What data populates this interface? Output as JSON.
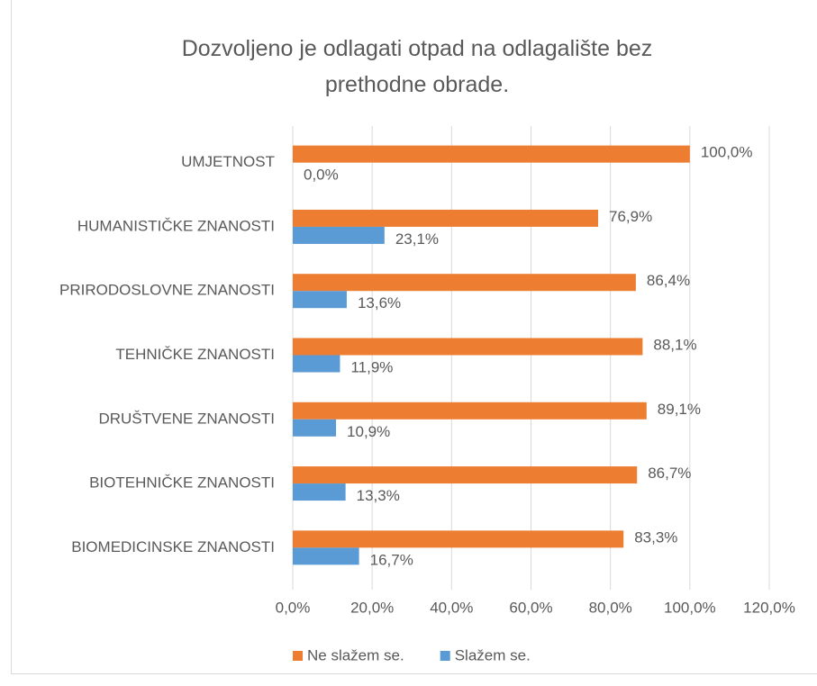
{
  "chart_data": {
    "type": "hbar",
    "title": "Dozvoljeno je odlagati otpad na odlagalište bez prethodne obrade.",
    "categories": [
      "UMJETNOST",
      "HUMANISTIČKE ZNANOSTI",
      "PRIRODOSLOVNE ZNANOSTI",
      "TEHNIČKE ZNANOSTI",
      "DRUŠTVENE ZNANOSTI",
      "BIOTEHNIČKE ZNANOSTI",
      "BIOMEDICINSKE ZNANOSTI"
    ],
    "series": [
      {
        "name": "Ne slažem se.",
        "color": "#ed7d31",
        "values": [
          100,
          76.9,
          86.4,
          88.1,
          89.1,
          86.7,
          83.3
        ],
        "value_labels": [
          "100,0%",
          "76,9%",
          "86,4%",
          "88,1%",
          "89,1%",
          "86,7%",
          "83,3%"
        ]
      },
      {
        "name": "Slažem se.",
        "color": "#5b9bd5",
        "values": [
          0,
          23.1,
          13.6,
          11.9,
          10.9,
          13.3,
          16.7
        ],
        "value_labels": [
          "0,0%",
          "23,1%",
          "13,6%",
          "11,9%",
          "10,9%",
          "13,3%",
          "16,7%"
        ]
      }
    ],
    "xlim": [
      0,
      120
    ],
    "xticks": [
      {
        "value": 0,
        "label": "0,0%"
      },
      {
        "value": 20,
        "label": "20,0%"
      },
      {
        "value": 40,
        "label": "40,0%"
      },
      {
        "value": 60,
        "label": "60,0%"
      },
      {
        "value": 80,
        "label": "80,0%"
      },
      {
        "value": 100,
        "label": "100,0%"
      },
      {
        "value": 120,
        "label": "120,0%"
      }
    ],
    "grid": true,
    "legend": "bottom"
  }
}
